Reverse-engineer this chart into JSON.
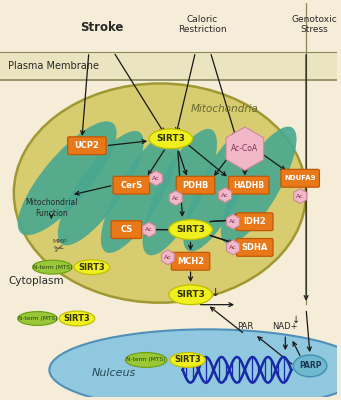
{
  "bg_color": "#f5edd8",
  "top_bg_color": "#f5edd8",
  "plasma_bg_color": "#ede8c8",
  "cell_bg_color": "#f5edd8",
  "mito_fill": "#d8cc70",
  "mito_edge": "#a09830",
  "cristae_fill": "#48a890",
  "orange_fill": "#e87818",
  "orange_edge": "#c05808",
  "yellow_fill": "#f0f020",
  "yellow_edge": "#c0c000",
  "pink_fill": "#f0b8c8",
  "pink_edge": "#d08898",
  "green_fill": "#98c838",
  "green_edge": "#70a018",
  "nucleus_fill": "#90c8e0",
  "nucleus_edge": "#5090b8",
  "parp_fill": "#70b8d0",
  "parp_edge": "#4090b0",
  "dna_color": "#1828a8",
  "text_dark": "#282828",
  "text_mito": "#686830",
  "arrow_color": "#181818",
  "line_color": "#888858",
  "stroke_label": "Stroke",
  "caloric_label": "Caloric\nRestriction",
  "genotoxic_label": "Genotoxic\nStress",
  "plasma_label": "Plasma Membrane",
  "mito_label": "Mitochondria",
  "cyto_label": "Cytoplasm",
  "nucleus_label": "Nulceus",
  "mito_func_label": "Mitochondrial\nFunction"
}
